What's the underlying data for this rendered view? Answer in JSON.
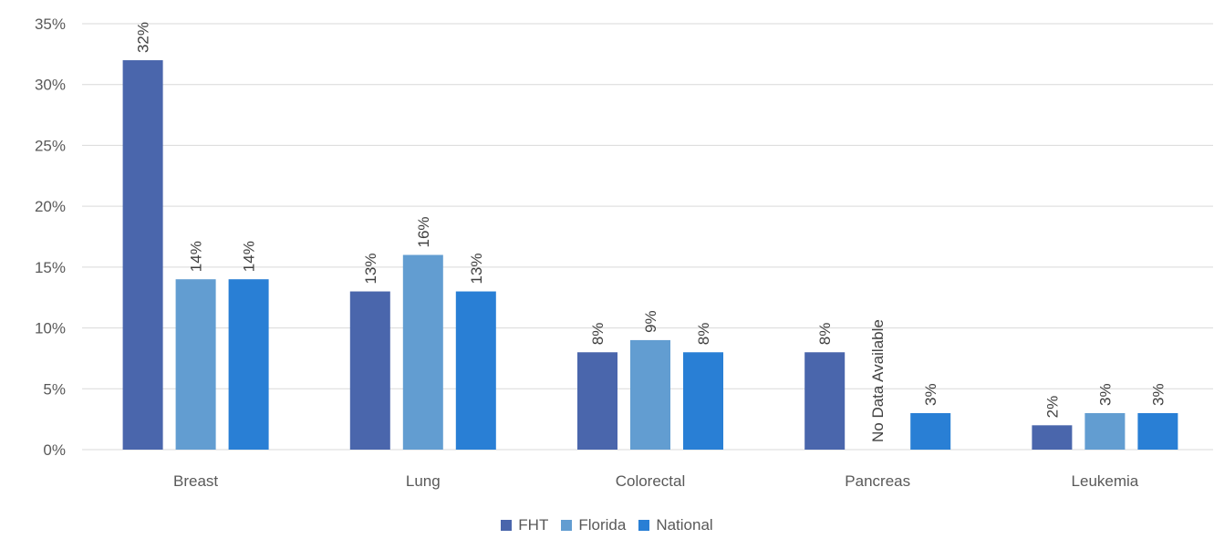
{
  "chart_data": {
    "type": "bar",
    "title": "",
    "xlabel": "",
    "ylabel": "",
    "ylim": [
      0,
      35
    ],
    "y_ticks": [
      "0%",
      "5%",
      "10%",
      "15%",
      "20%",
      "25%",
      "30%",
      "35%"
    ],
    "y_tick_values": [
      0,
      5,
      10,
      15,
      20,
      25,
      30,
      35
    ],
    "grid": true,
    "legend_position": "bottom",
    "categories": [
      "Breast",
      "Lung",
      "Colorectal",
      "Pancreas",
      "Leukemia"
    ],
    "series": [
      {
        "name": "FHT",
        "color": "#4A66AC",
        "values": [
          32,
          13,
          8,
          8,
          2
        ],
        "labels": [
          "32%",
          "13%",
          "8%",
          "8%",
          "2%"
        ]
      },
      {
        "name": "Florida",
        "color": "#629DD1",
        "values": [
          14,
          16,
          9,
          null,
          3
        ],
        "labels": [
          "14%",
          "16%",
          "9%",
          "No Data Available",
          "3%"
        ]
      },
      {
        "name": "National",
        "color": "#297FD5",
        "values": [
          14,
          13,
          8,
          3,
          3
        ],
        "labels": [
          "14%",
          "13%",
          "8%",
          "3%",
          "3%"
        ]
      }
    ]
  }
}
